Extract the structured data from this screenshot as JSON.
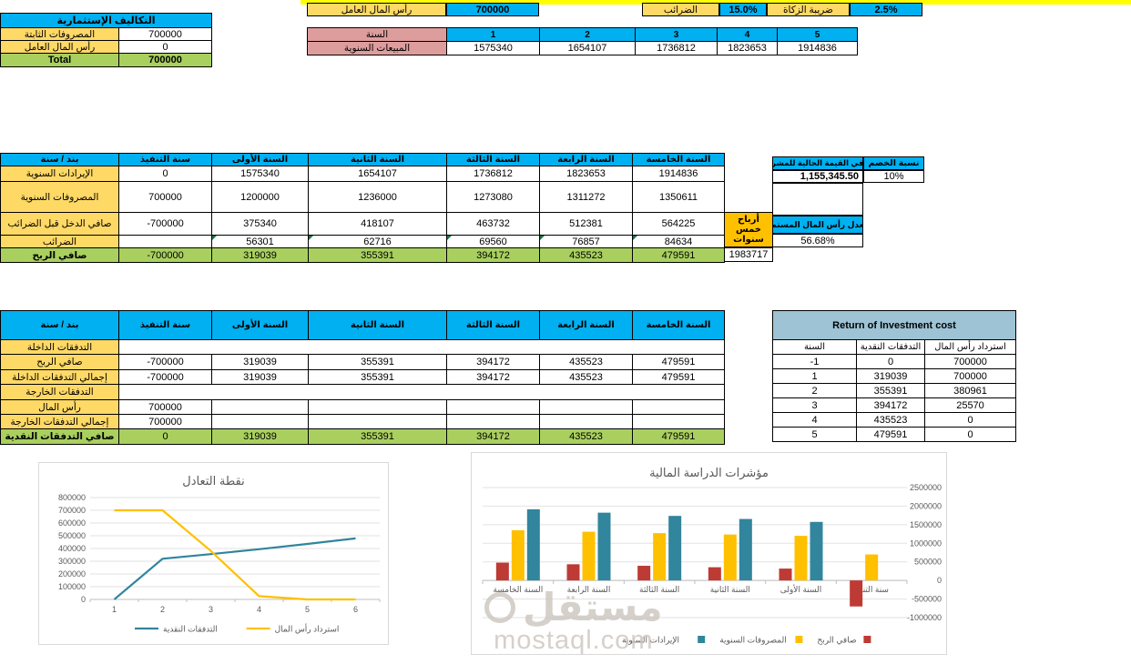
{
  "colors": {
    "header_blue": "#00B0F0",
    "label_yellow": "#FFD966",
    "strip_yellow": "#FFFF00",
    "green_row": "#A9D05F",
    "pink": "#DE9D9D",
    "orange": "#FFC000",
    "roi_header": "#9DC3D5",
    "chart_teal": "#31859C",
    "chart_yellow": "#FFC000",
    "chart_red": "#BE3A34"
  },
  "investment_costs": {
    "title": "التكاليف الإستثمارية",
    "rows": [
      {
        "label": "المصروفات الثابتة",
        "value": "700000"
      },
      {
        "label": "رأس المال العامل",
        "value": "0"
      }
    ],
    "total_label": "Total",
    "total_value": "700000"
  },
  "working_capital": {
    "label": "رأس المال العامل",
    "value": "700000"
  },
  "tax": {
    "label": "الضرائب",
    "value": "15.0%"
  },
  "zakat": {
    "label": "ضريبة الزكاة",
    "value": "2.5%"
  },
  "sales": {
    "year_label": "السنة",
    "years": [
      "1",
      "2",
      "3",
      "4",
      "5"
    ],
    "row_label": "المبيعات السنوية",
    "values": [
      "1575340",
      "1654107",
      "1736812",
      "1823653",
      "1914836"
    ]
  },
  "income": {
    "headers": [
      "بند / سنة",
      "سنة التنفيذ",
      "السنة الأولى",
      "السنة الثانية",
      "السنة الثالثة",
      "السنة الرابعة",
      "السنة الخامسة"
    ],
    "rows": [
      {
        "label": "الإيرادات السنوية",
        "values": [
          "0",
          "1575340",
          "1654107",
          "1736812",
          "1823653",
          "1914836"
        ]
      },
      {
        "label": "المصروفات السنوية",
        "values": [
          "700000",
          "1200000",
          "1236000",
          "1273080",
          "1311272",
          "1350611"
        ]
      },
      {
        "label": "صافي الدخل قبل الضرائب",
        "values": [
          "-700000",
          "375340",
          "418107",
          "463732",
          "512381",
          "564225"
        ]
      },
      {
        "label": "الضرائب",
        "values": [
          "",
          "56301",
          "62716",
          "69560",
          "76857",
          "84634"
        ]
      },
      {
        "label": "صافي الربح",
        "values": [
          "-700000",
          "319039",
          "355391",
          "394172",
          "435523",
          "479591"
        ]
      }
    ],
    "five_year_profit_label": "أرباح خمس سنوات",
    "five_year_profit_value": "1983717"
  },
  "npv": {
    "header": "صافي القيمة الحالية للمشروع",
    "value": "1,155,345.50",
    "discount_header": "نسبة الخصم",
    "discount_value": "10%",
    "rate_header": "معدل رأس المال المستمر",
    "rate_value": "56.68%"
  },
  "cashflow": {
    "headers": [
      "بند / سنة",
      "سنة التنفيذ",
      "السنة الأولى",
      "السنة الثانية",
      "السنة الثالثة",
      "السنة الرابعة",
      "السنة الخامسة"
    ],
    "rows": [
      {
        "label": "التدفقات الداخلة",
        "values": [
          "",
          "",
          "",
          "",
          "",
          ""
        ]
      },
      {
        "label": "صافي الربح",
        "values": [
          "-700000",
          "319039",
          "355391",
          "394172",
          "435523",
          "479591"
        ]
      },
      {
        "label": "إجمالي التدفقات الداخلة",
        "values": [
          "-700000",
          "319039",
          "355391",
          "394172",
          "435523",
          "479591"
        ]
      },
      {
        "label": "التدفقات الخارجة",
        "values": [
          "",
          "",
          "",
          "",
          "",
          ""
        ]
      },
      {
        "label": "رأس المال",
        "values": [
          "700000",
          "",
          "",
          "",
          "",
          ""
        ]
      },
      {
        "label": "إجمالي التدفقات الخارجة",
        "values": [
          "700000",
          "",
          "",
          "",
          "",
          ""
        ]
      },
      {
        "label": "صافي التدفقات النقدية",
        "values": [
          "0",
          "319039",
          "355391",
          "394172",
          "435523",
          "479591"
        ]
      }
    ]
  },
  "roi": {
    "title": "Return of Investment cost",
    "headers": [
      "السنة",
      "التدفقات النقدية",
      "استرداد رأس المال"
    ],
    "rows": [
      [
        "-1",
        "0",
        "700000"
      ],
      [
        "1",
        "319039",
        "700000"
      ],
      [
        "2",
        "355391",
        "380961"
      ],
      [
        "3",
        "394172",
        "25570"
      ],
      [
        "4",
        "435523",
        "0"
      ],
      [
        "5",
        "479591",
        "0"
      ]
    ]
  },
  "chart_data": [
    {
      "type": "line",
      "title": "نقطة التعادل",
      "x": [
        1,
        2,
        3,
        4,
        5,
        6
      ],
      "series": [
        {
          "name": "التدفقات النقدية",
          "color": "#31859C",
          "values": [
            0,
            319039,
            355391,
            394172,
            435523,
            479591
          ]
        },
        {
          "name": "استرداد رأس المال",
          "color": "#FFC000",
          "values": [
            700000,
            700000,
            380961,
            25570,
            0,
            0
          ]
        }
      ],
      "ylim": [
        0,
        800000
      ],
      "ytick_step": 100000,
      "grid": true,
      "legend_position": "bottom"
    },
    {
      "type": "bar",
      "title": "مؤشرات الدراسة المالية",
      "categories": [
        "سنة التنف",
        "السنة الأولى",
        "السنة الثانية",
        "السنة الثالثة",
        "السنة الرابعة",
        "السنة الخامسة"
      ],
      "rtl": true,
      "series": [
        {
          "name": "صافي الربح",
          "color": "#BE3A34",
          "values": [
            -700000,
            319039,
            355391,
            394172,
            435523,
            479591
          ]
        },
        {
          "name": "المصروفات السنوية",
          "color": "#FFC000",
          "values": [
            700000,
            1200000,
            1236000,
            1273080,
            1311272,
            1350611
          ]
        },
        {
          "name": "الإيرادات السنوية",
          "color": "#31859C",
          "values": [
            0,
            1575340,
            1654107,
            1736812,
            1823653,
            1914836
          ]
        }
      ],
      "ylim": [
        -1000000,
        2500000
      ],
      "ytick_step": 500000,
      "y_axis_side": "right",
      "grid": true,
      "legend_position": "bottom"
    }
  ],
  "watermark": {
    "logo_text": "مستقل",
    "domain": "mostaql.com"
  }
}
